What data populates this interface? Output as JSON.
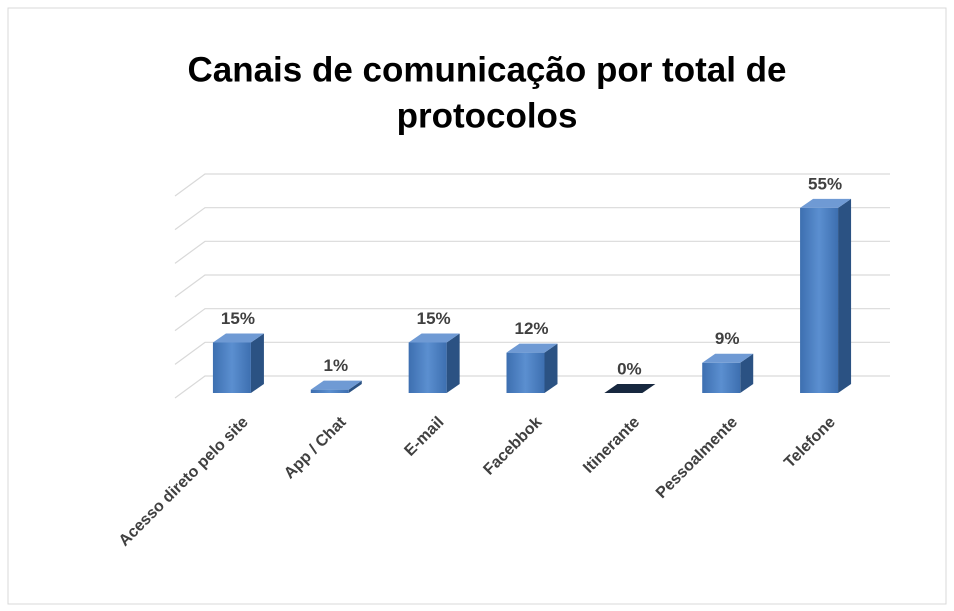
{
  "chart_data": {
    "type": "bar3d",
    "title_lines": [
      "Canais de comunicação por total de",
      "protocolos"
    ],
    "categories": [
      "Acesso direto pelo site",
      "App / Chat",
      "E-mail",
      "Facebbok",
      "Itinerante",
      "Pessoalmente",
      "Telefone"
    ],
    "values": [
      15,
      1,
      15,
      12,
      0,
      9,
      55
    ],
    "value_labels": [
      "15%",
      "1%",
      "15%",
      "12%",
      "0%",
      "9%",
      "55%"
    ],
    "color": "#4a7ebf",
    "ylim": [
      0,
      60
    ],
    "yticks": [
      0,
      10,
      20,
      30,
      40,
      50,
      60
    ],
    "grid": true
  }
}
